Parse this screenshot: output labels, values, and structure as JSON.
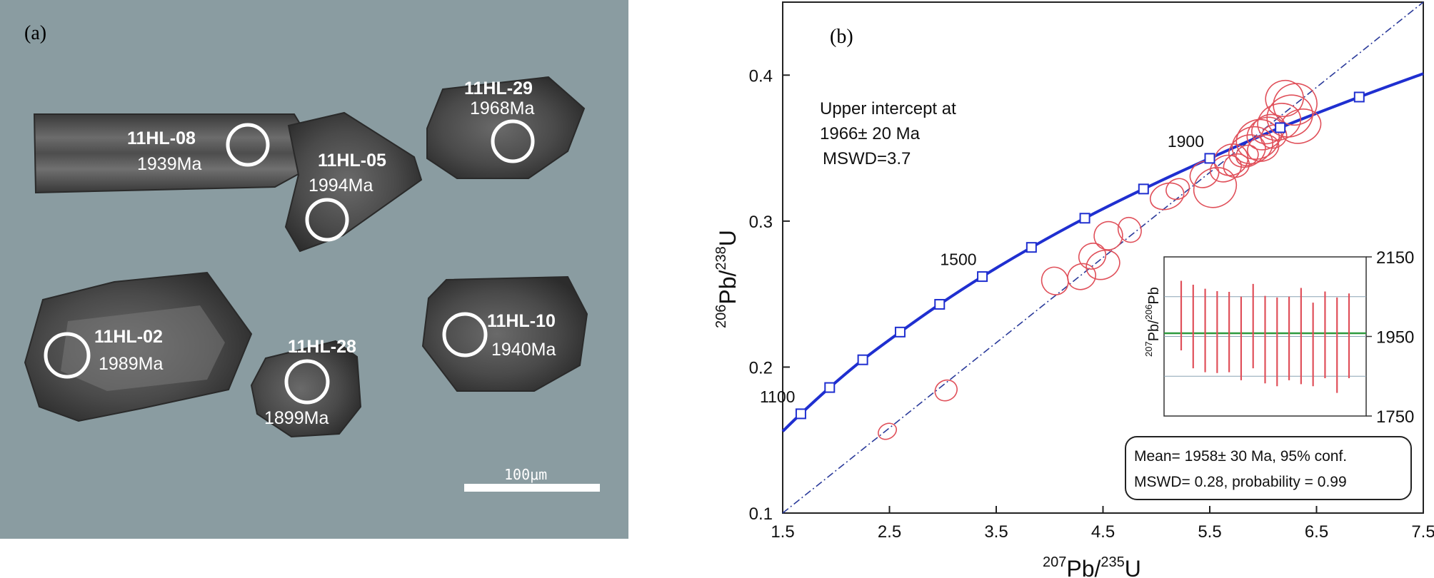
{
  "panel_a": {
    "label": "(a)",
    "scale_bar": "100μm",
    "background_color": "#8a9ca1",
    "grains": [
      {
        "id": "11HL-08",
        "age": "1939Ma"
      },
      {
        "id": "11HL-05",
        "age": "1994Ma"
      },
      {
        "id": "11HL-29",
        "age": "1968Ma"
      },
      {
        "id": "11HL-02",
        "age": "1989Ma"
      },
      {
        "id": "11HL-28",
        "age": "1899Ma"
      },
      {
        "id": "11HL-10",
        "age": "1940Ma"
      }
    ]
  },
  "chart_data": [
    {
      "type": "scatter",
      "panel_label": "(b)",
      "xlabel_parts": [
        "207",
        "Pb/",
        "235",
        "U"
      ],
      "ylabel_parts": [
        "206",
        "Pb/",
        "238",
        "U"
      ],
      "xlim": [
        1.5,
        7.5
      ],
      "ylim": [
        0.1,
        0.45
      ],
      "x_ticks": [
        1.5,
        2.5,
        3.5,
        4.5,
        5.5,
        6.5,
        7.5
      ],
      "x_tick_labels": [
        "1.5",
        "2.5",
        "3.5",
        "4.5",
        "5.5",
        "6.5",
        "7.5"
      ],
      "y_ticks": [
        0.1,
        0.2,
        0.3,
        0.4
      ],
      "y_tick_labels": [
        "0.1",
        "0.2",
        "0.3",
        "0.4"
      ],
      "grid": false,
      "annotation_lines": [
        "Upper intercept at",
        "1966± 20 Ma",
        "MSWD=3.7"
      ],
      "concordia_color": "#1f2fd0",
      "discordia_color": "#2a3a9a",
      "ellipse_color": "#e0505a",
      "concordia_markers": [
        {
          "x": 1.67,
          "y": 0.168,
          "label": "1100"
        },
        {
          "x": 1.94,
          "y": 0.186,
          "label": ""
        },
        {
          "x": 2.25,
          "y": 0.205,
          "label": ""
        },
        {
          "x": 2.6,
          "y": 0.224,
          "label": ""
        },
        {
          "x": 2.97,
          "y": 0.243,
          "label": ""
        },
        {
          "x": 3.37,
          "y": 0.262,
          "label": "1500"
        },
        {
          "x": 3.83,
          "y": 0.282,
          "label": ""
        },
        {
          "x": 4.33,
          "y": 0.302,
          "label": ""
        },
        {
          "x": 4.88,
          "y": 0.322,
          "label": ""
        },
        {
          "x": 5.5,
          "y": 0.343,
          "label": "1900"
        },
        {
          "x": 6.16,
          "y": 0.364,
          "label": ""
        },
        {
          "x": 6.9,
          "y": 0.385,
          "label": ""
        }
      ],
      "concordia_curve": [
        {
          "x": 1.5,
          "y": 0.156
        },
        {
          "x": 1.67,
          "y": 0.168
        },
        {
          "x": 1.94,
          "y": 0.186
        },
        {
          "x": 2.25,
          "y": 0.205
        },
        {
          "x": 2.6,
          "y": 0.224
        },
        {
          "x": 2.97,
          "y": 0.243
        },
        {
          "x": 3.37,
          "y": 0.262
        },
        {
          "x": 3.83,
          "y": 0.282
        },
        {
          "x": 4.33,
          "y": 0.302
        },
        {
          "x": 4.88,
          "y": 0.322
        },
        {
          "x": 5.5,
          "y": 0.343
        },
        {
          "x": 6.16,
          "y": 0.364
        },
        {
          "x": 6.9,
          "y": 0.385
        },
        {
          "x": 7.5,
          "y": 0.401
        }
      ],
      "discordia_line": [
        {
          "x": 1.5,
          "y": 0.1
        },
        {
          "x": 7.5,
          "y": 0.45
        }
      ],
      "ellipses": [
        {
          "cx": 2.48,
          "cy": 0.156,
          "rx": 0.09,
          "ry": 0.004,
          "angle": -30
        },
        {
          "cx": 3.03,
          "cy": 0.184,
          "rx": 0.12,
          "ry": 0.006,
          "angle": -30
        },
        {
          "cx": 4.05,
          "cy": 0.259,
          "rx": 0.15,
          "ry": 0.009,
          "angle": -28
        },
        {
          "cx": 4.3,
          "cy": 0.262,
          "rx": 0.17,
          "ry": 0.008,
          "angle": -25
        },
        {
          "cx": 4.5,
          "cy": 0.27,
          "rx": 0.22,
          "ry": 0.009,
          "angle": -25
        },
        {
          "cx": 4.4,
          "cy": 0.276,
          "rx": 0.16,
          "ry": 0.008,
          "angle": -30
        },
        {
          "cx": 4.55,
          "cy": 0.29,
          "rx": 0.17,
          "ry": 0.009,
          "angle": -30
        },
        {
          "cx": 4.75,
          "cy": 0.294,
          "rx": 0.12,
          "ry": 0.008,
          "angle": -25
        },
        {
          "cx": 5.1,
          "cy": 0.317,
          "rx": 0.22,
          "ry": 0.008,
          "angle": -20
        },
        {
          "cx": 5.2,
          "cy": 0.322,
          "rx": 0.13,
          "ry": 0.006,
          "angle": -25
        },
        {
          "cx": 5.55,
          "cy": 0.323,
          "rx": 0.3,
          "ry": 0.013,
          "angle": -30
        },
        {
          "cx": 5.45,
          "cy": 0.332,
          "rx": 0.18,
          "ry": 0.008,
          "angle": -30
        },
        {
          "cx": 5.65,
          "cy": 0.336,
          "rx": 0.2,
          "ry": 0.008,
          "angle": -25
        },
        {
          "cx": 5.7,
          "cy": 0.342,
          "rx": 0.22,
          "ry": 0.01,
          "angle": -28
        },
        {
          "cx": 5.75,
          "cy": 0.338,
          "rx": 0.15,
          "ry": 0.007,
          "angle": -25
        },
        {
          "cx": 5.85,
          "cy": 0.348,
          "rx": 0.25,
          "ry": 0.01,
          "angle": -28
        },
        {
          "cx": 5.9,
          "cy": 0.352,
          "rx": 0.28,
          "ry": 0.012,
          "angle": -25
        },
        {
          "cx": 5.95,
          "cy": 0.356,
          "rx": 0.3,
          "ry": 0.013,
          "angle": -28
        },
        {
          "cx": 6.0,
          "cy": 0.35,
          "rx": 0.2,
          "ry": 0.008,
          "angle": -22
        },
        {
          "cx": 6.02,
          "cy": 0.36,
          "rx": 0.25,
          "ry": 0.01,
          "angle": -30
        },
        {
          "cx": 6.05,
          "cy": 0.363,
          "rx": 0.22,
          "ry": 0.009,
          "angle": -25
        },
        {
          "cx": 6.1,
          "cy": 0.358,
          "rx": 0.15,
          "ry": 0.007,
          "angle": -25
        },
        {
          "cx": 5.85,
          "cy": 0.345,
          "rx": 0.12,
          "ry": 0.006,
          "angle": -25
        },
        {
          "cx": 6.15,
          "cy": 0.368,
          "rx": 0.3,
          "ry": 0.012,
          "angle": -20
        },
        {
          "cx": 6.25,
          "cy": 0.372,
          "rx": 0.32,
          "ry": 0.014,
          "angle": -22
        },
        {
          "cx": 6.3,
          "cy": 0.38,
          "rx": 0.3,
          "ry": 0.014,
          "angle": -20
        },
        {
          "cx": 6.2,
          "cy": 0.384,
          "rx": 0.25,
          "ry": 0.012,
          "angle": -18
        },
        {
          "cx": 6.35,
          "cy": 0.365,
          "rx": 0.28,
          "ry": 0.011,
          "angle": -20
        }
      ]
    },
    {
      "type": "bar",
      "subtype": "error-bar",
      "ylabel_parts": [
        "207",
        "Pb/",
        "206",
        "Pb"
      ],
      "ylim": [
        1750,
        2150
      ],
      "y_tick_labels": [
        "2150",
        "1950",
        "1750"
      ],
      "y_ticks": [
        2150,
        1950,
        1750
      ],
      "gridlines": [
        2050,
        1950,
        1850
      ],
      "mean": 1958,
      "mean_color": "#2e9a3e",
      "bar_color": "#e0505a",
      "points": [
        {
          "low": 1915,
          "high": 2090
        },
        {
          "low": 1870,
          "high": 2080
        },
        {
          "low": 1860,
          "high": 2070
        },
        {
          "low": 1858,
          "high": 2064
        },
        {
          "low": 1860,
          "high": 2062
        },
        {
          "low": 1840,
          "high": 2050
        },
        {
          "low": 1870,
          "high": 2082
        },
        {
          "low": 1832,
          "high": 2052
        },
        {
          "low": 1825,
          "high": 2048
        },
        {
          "low": 1840,
          "high": 2050
        },
        {
          "low": 1830,
          "high": 2072
        },
        {
          "low": 1825,
          "high": 2035
        },
        {
          "low": 1845,
          "high": 2063
        },
        {
          "low": 1808,
          "high": 2048
        },
        {
          "low": 1845,
          "high": 2058
        }
      ],
      "result_lines": [
        "Mean= 1958± 30 Ma, 95% conf.",
        "MSWD= 0.28, probability = 0.99"
      ]
    }
  ]
}
